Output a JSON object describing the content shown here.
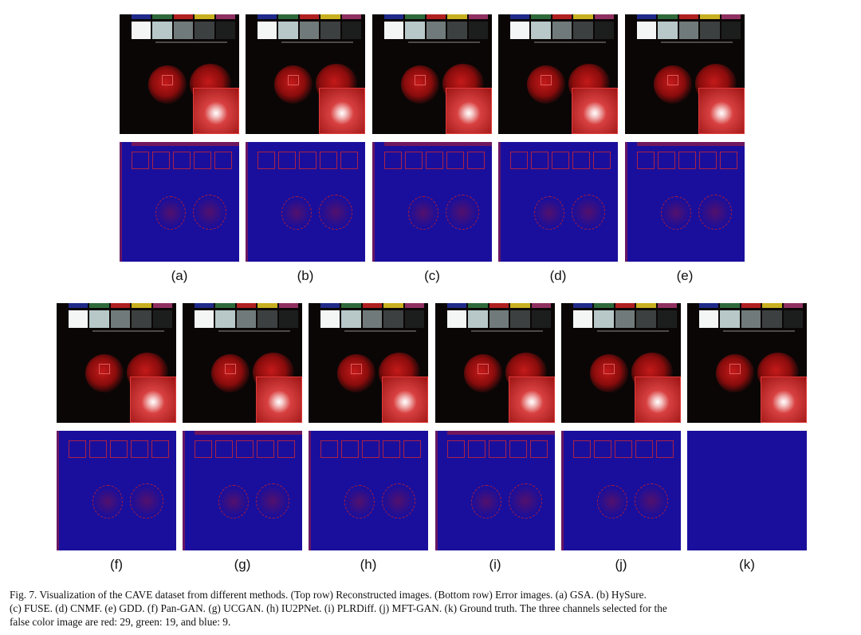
{
  "figure": {
    "top_row_labels": [
      "(a)",
      "(b)",
      "(c)",
      "(d)",
      "(e)"
    ],
    "bottom_row_labels": [
      "(f)",
      "(g)",
      "(h)",
      "(i)",
      "(j)",
      "(k)"
    ],
    "colors": {
      "error_background": "#1a0f9c",
      "error_marks": "#d21e1e",
      "reconstruction_background": "#0b0606",
      "fruit": "#c41a1a"
    }
  },
  "caption": {
    "line1": "Fig. 7.   Visualization of the CAVE dataset from different methods. (Top row) Reconstructed images. (Bottom row) Error images. (a) GSA. (b) HySure.",
    "line2": "(c) FUSE. (d) CNMF. (e) GDD. (f) Pan-GAN. (g) UCGAN. (h) IU2PNet. (i) PLRDiff. (j) MFT-GAN. (k) Ground truth. The three channels selected for the",
    "line3": "false color image are red: 29, green: 19, and blue: 9."
  }
}
